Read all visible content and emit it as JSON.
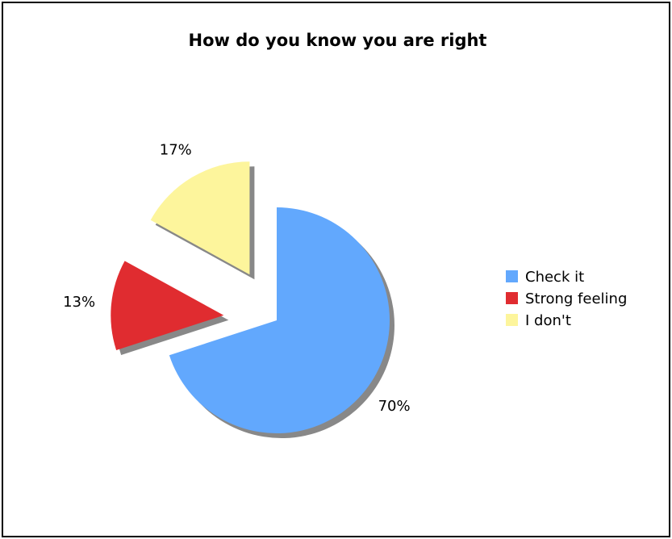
{
  "chart_data": {
    "type": "pie",
    "title": "How do you know you are right",
    "slices": [
      {
        "label": "Check it",
        "value": 70,
        "display": "70%",
        "color": "#62a8fd",
        "exploded": false
      },
      {
        "label": "Strong feeling",
        "value": 13,
        "display": "13%",
        "color": "#e02c30",
        "exploded": true
      },
      {
        "label": "I don't",
        "value": 17,
        "display": "17%",
        "color": "#fdf59c",
        "exploded": true
      }
    ],
    "legend": {
      "placement": "right",
      "entries": [
        "Check it",
        "Strong feeling",
        "I don't"
      ]
    },
    "shadow_color": "#888888"
  }
}
